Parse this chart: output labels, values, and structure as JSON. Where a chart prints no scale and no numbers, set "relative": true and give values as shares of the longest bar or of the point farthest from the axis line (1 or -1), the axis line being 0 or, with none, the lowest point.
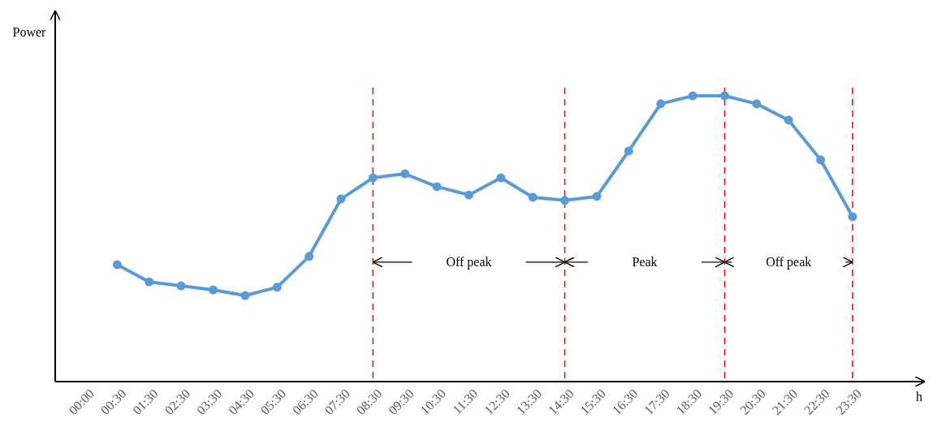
{
  "chart_data": {
    "type": "line",
    "relative": true,
    "xlabel": "h",
    "ylabel": "Power",
    "categories": [
      "00:00",
      "00:30",
      "01:30",
      "02:30",
      "03:30",
      "04:30",
      "05:30",
      "06:30",
      "07:30",
      "08:30",
      "09:30",
      "10:30",
      "11:30",
      "12:30",
      "13:30",
      "14:30",
      "15:30",
      "16:30",
      "17:30",
      "18:30",
      "19:30",
      "20:30",
      "21:30",
      "22:30",
      "23:30"
    ],
    "series": [
      {
        "color": "#5b9bd5",
        "values": [
          null,
          0.409,
          0.349,
          0.335,
          0.321,
          0.301,
          0.33,
          0.438,
          0.639,
          0.713,
          0.727,
          0.682,
          0.653,
          0.713,
          0.645,
          0.634,
          0.648,
          0.807,
          0.972,
          1,
          1,
          0.972,
          0.915,
          0.776,
          0.577
        ]
      }
    ],
    "marker": "circle",
    "line_style": "solid",
    "ref_lines": [
      {
        "axis": "x",
        "value": "08:30",
        "color": "#ff0000",
        "line_style": "dashed"
      },
      {
        "axis": "x",
        "value": "14:30",
        "color": "#ff0000",
        "line_style": "dashed"
      },
      {
        "axis": "x",
        "value": "19:30",
        "color": "#ff0000",
        "line_style": "dashed"
      },
      {
        "axis": "x",
        "value": "23:30",
        "color": "#ff0000",
        "line_style": "dashed"
      }
    ],
    "annotations": [
      "Off peak",
      "Peak",
      "Off peak"
    ]
  }
}
